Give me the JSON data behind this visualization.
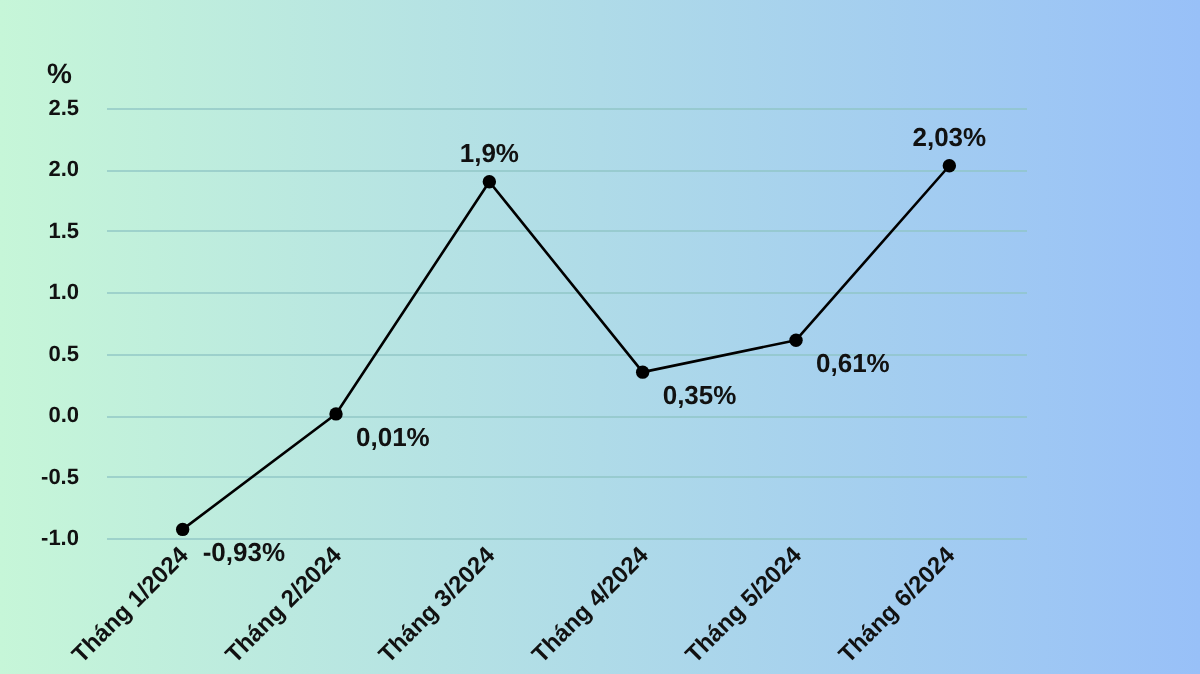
{
  "chart_data": {
    "type": "line",
    "ylabel": "%",
    "categories": [
      "Tháng 1/2024",
      "Tháng 2/2024",
      "Tháng 3/2024",
      "Tháng 4/2024",
      "Tháng 5/2024",
      "Tháng 6/2024"
    ],
    "series": [
      {
        "color": "#000000",
        "values": [
          -0.93,
          0.01,
          1.9,
          0.35,
          0.61,
          2.03
        ],
        "value_labels": [
          "-0,93%",
          "0,01%",
          "1,9%",
          "0,35%",
          "0,61%",
          "2,03%"
        ]
      }
    ],
    "ylim": [
      -1.0,
      2.5
    ],
    "yticks": [
      {
        "value": -1.0,
        "label": "-1.0"
      },
      {
        "value": -0.5,
        "label": "-0.5"
      },
      {
        "value": 0,
        "label": "0.0"
      },
      {
        "value": 0.5,
        "label": "0.5"
      },
      {
        "value": 1.0,
        "label": "1.0"
      },
      {
        "value": 1.5,
        "label": "1.5"
      },
      {
        "value": 2.0,
        "label": "2.0"
      },
      {
        "value": 2.5,
        "label": "2.5"
      }
    ],
    "grid": "y",
    "marker": "circle",
    "line_style": "solid"
  }
}
